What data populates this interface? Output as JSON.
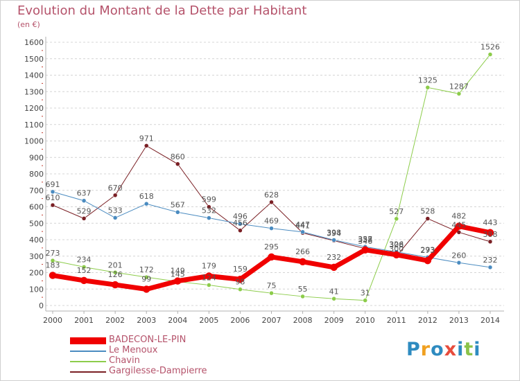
{
  "header": {
    "title": "Evolution du Montant de la Dette par Habitant",
    "subtitle": "(en €)"
  },
  "logo": {
    "text": "Proxiti",
    "colors": [
      "#2e8bc0",
      "#f0a020",
      "#2e8bc0",
      "#e74c3c",
      "#2e8bc0",
      "#8bc34a",
      "#2e8bc0"
    ]
  },
  "chart_data": {
    "type": "line",
    "title": "Evolution du Montant de la Dette par Habitant",
    "subtitle": "(en €)",
    "xlabel": "",
    "ylabel": "",
    "x": [
      2000,
      2001,
      2002,
      2003,
      2004,
      2005,
      2006,
      2007,
      2008,
      2009,
      2010,
      2011,
      2012,
      2013,
      2014
    ],
    "ylim": [
      0,
      1600
    ],
    "yticks": [
      0,
      100,
      200,
      300,
      400,
      500,
      600,
      700,
      800,
      900,
      1000,
      1100,
      1200,
      1300,
      1400,
      1500,
      1600
    ],
    "grid": "horizontal dashed",
    "legend_position": "bottom",
    "series": [
      {
        "name": "Gargilesse-Dampierre",
        "color": "#7a1f24",
        "width": 1,
        "values": [
          610,
          529,
          670,
          971,
          860,
          599,
          456,
          628,
          441,
          394,
          346,
          300,
          528,
          445,
          388
        ]
      },
      {
        "name": "Chavin",
        "color": "#8ccc4a",
        "width": 1,
        "values": [
          273,
          234,
          201,
          172,
          145,
          124,
          98,
          75,
          55,
          41,
          31,
          527,
          1325,
          1287,
          1526
        ]
      },
      {
        "name": "Le Menoux",
        "color": "#4a8bc0",
        "width": 1,
        "values": [
          691,
          637,
          533,
          618,
          567,
          532,
          496,
          469,
          447,
          398,
          357,
          326,
          293,
          260,
          232
        ]
      },
      {
        "name": "BADECON-LE-PIN",
        "color": "#f00000",
        "width": 7,
        "values": [
          183,
          152,
          126,
          99,
          149,
          179,
          159,
          295,
          266,
          232,
          338,
          308,
          273,
          482,
          443
        ]
      }
    ]
  }
}
